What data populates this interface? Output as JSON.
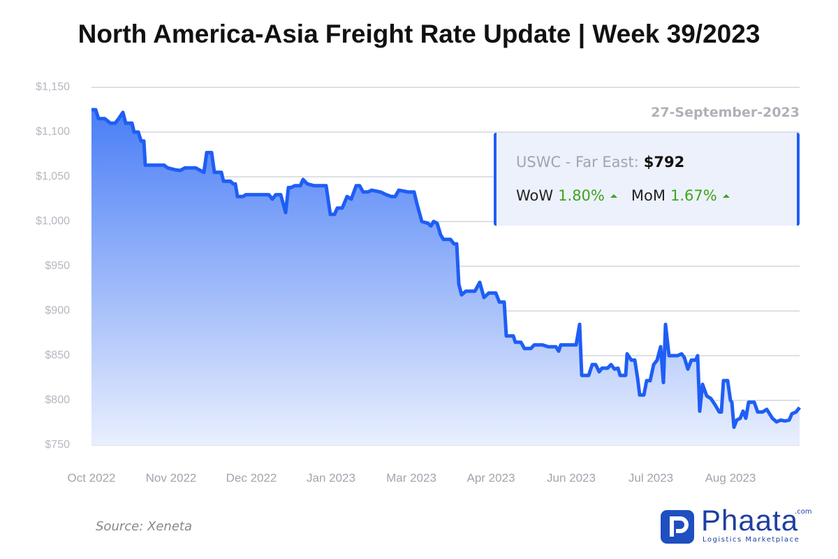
{
  "chart_data": {
    "type": "line",
    "title": "North America-Asia Freight Rate Update | Week 39/2023",
    "date_label": "27-September-2023",
    "annotation": {
      "label": "USWC - Far East:",
      "value": "$792",
      "wow_label": "WoW",
      "wow": "1.80%",
      "mom_label": "MoM",
      "mom": "1.67%"
    },
    "color": "#1f5ef5",
    "x": [
      0,
      6,
      10,
      19,
      27,
      34,
      39,
      45,
      49,
      58,
      61,
      67,
      71,
      75,
      77,
      104,
      109,
      119,
      127,
      134,
      149,
      156,
      161,
      165,
      172,
      176,
      186,
      189,
      199,
      203,
      206,
      209,
      217,
      221,
      254,
      259,
      264,
      271,
      278,
      282,
      286,
      291,
      299,
      303,
      309,
      319,
      336,
      342,
      348,
      352,
      359,
      366,
      372,
      379,
      384,
      389,
      396,
      401,
      414,
      422,
      429,
      435,
      440,
      454,
      462,
      466,
      473,
      482,
      486,
      490,
      495,
      500,
      504,
      514,
      519,
      523,
      526,
      530,
      536,
      549,
      556,
      562,
      569,
      579,
      584,
      591,
      594,
      604,
      607,
      615,
      620,
      629,
      634,
      646,
      654,
      665,
      669,
      672,
      694,
      699,
      702,
      712,
      717,
      722,
      727,
      731,
      739,
      744,
      749,
      754,
      757,
      765,
      767,
      773,
      778,
      782,
      785,
      791,
      795,
      800,
      805,
      810,
      815,
      819,
      822,
      827,
      839,
      845,
      849,
      854,
      859,
      865,
      868,
      871,
      875,
      881,
      887,
      893,
      899,
      902,
      905,
      911,
      915,
      917,
      920,
      924,
      929,
      933,
      937,
      941,
      949,
      954,
      961,
      967,
      971,
      975,
      981,
      987,
      993,
      999,
      1003,
      1009,
      1014
    ],
    "values": [
      1125,
      1125,
      1115,
      1115,
      1110,
      1110,
      1115,
      1122,
      1110,
      1110,
      1100,
      1100,
      1090,
      1090,
      1063,
      1063,
      1060,
      1058,
      1057,
      1060,
      1060,
      1057,
      1055,
      1077,
      1077,
      1055,
      1055,
      1045,
      1045,
      1042,
      1042,
      1028,
      1028,
      1030,
      1030,
      1025,
      1030,
      1030,
      1010,
      1038,
      1038,
      1040,
      1040,
      1047,
      1042,
      1040,
      1040,
      1008,
      1008,
      1015,
      1015,
      1028,
      1025,
      1040,
      1040,
      1033,
      1033,
      1035,
      1033,
      1030,
      1028,
      1028,
      1035,
      1033,
      1033,
      1020,
      1000,
      998,
      995,
      1000,
      998,
      985,
      980,
      980,
      975,
      975,
      930,
      918,
      922,
      922,
      932,
      915,
      920,
      920,
      910,
      910,
      872,
      872,
      865,
      865,
      858,
      858,
      862,
      862,
      860,
      860,
      855,
      862,
      862,
      885,
      828,
      828,
      840,
      840,
      832,
      836,
      836,
      840,
      835,
      836,
      828,
      828,
      852,
      845,
      845,
      825,
      806,
      806,
      822,
      822,
      840,
      845,
      860,
      820,
      885,
      850,
      850,
      852,
      848,
      835,
      845,
      845,
      850,
      788,
      818,
      805,
      802,
      795,
      787,
      787,
      822,
      822,
      800,
      798,
      770,
      778,
      780,
      788,
      780,
      798,
      798,
      787,
      787,
      790,
      785,
      780,
      776,
      778,
      777,
      778,
      785,
      787,
      792
    ],
    "xlim": [
      0,
      1014
    ],
    "xticks": [
      {
        "value": 0,
        "label": "Oct 2022"
      },
      {
        "value": 114,
        "label": "Nov 2022"
      },
      {
        "value": 229,
        "label": "Dec 2022"
      },
      {
        "value": 343,
        "label": "Jan 2023"
      },
      {
        "value": 458,
        "label": "Mar 2023"
      },
      {
        "value": 572,
        "label": "Apr 2023"
      },
      {
        "value": 687,
        "label": "Jun 2023"
      },
      {
        "value": 801,
        "label": "Jul 2023"
      },
      {
        "value": 915,
        "label": "Aug 2023"
      }
    ],
    "ylim": [
      750,
      1150
    ],
    "yticks": [
      {
        "value": 750,
        "label": "$750"
      },
      {
        "value": 800,
        "label": "$800"
      },
      {
        "value": 850,
        "label": "$850"
      },
      {
        "value": 900,
        "label": "$900"
      },
      {
        "value": 950,
        "label": "$950"
      },
      {
        "value": 1000,
        "label": "$1,000"
      },
      {
        "value": 1050,
        "label": "$1,050"
      },
      {
        "value": 1100,
        "label": "$1,100"
      },
      {
        "value": 1150,
        "label": "$1,150"
      }
    ],
    "grid": true
  },
  "footer": {
    "source": "Source: Xeneta",
    "brand": "Phaata",
    "brand_suffix": ".com",
    "brand_tagline": "Logistics Marketplace"
  }
}
